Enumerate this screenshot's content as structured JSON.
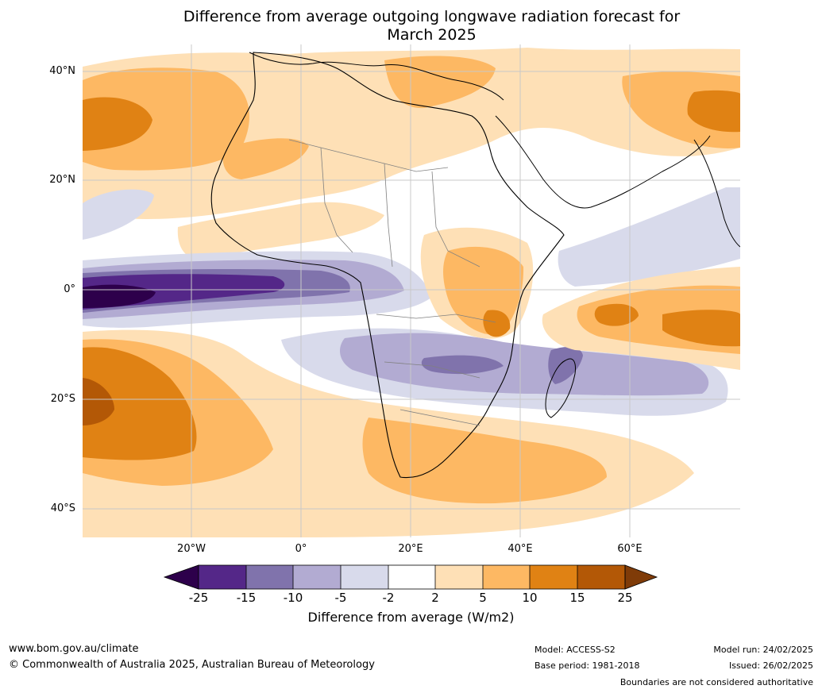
{
  "title_line1": "Difference from average outgoing longwave radiation forecast for",
  "title_line2": "March 2025",
  "lat_labels": [
    "40°N",
    "20°N",
    "0°",
    "20°S",
    "40°S"
  ],
  "lon_labels": [
    "20°W",
    "0°",
    "20°E",
    "40°E",
    "60°E"
  ],
  "colorbar": {
    "label": "Difference from average (W/m2)",
    "ticks": [
      "-25",
      "-15",
      "-10",
      "-5",
      "-2",
      "2",
      "5",
      "10",
      "15",
      "25"
    ],
    "colors": [
      "#2d004b",
      "#542788",
      "#8073ac",
      "#b2abd2",
      "#d8daeb",
      "#ffffff",
      "#fee0b6",
      "#fdb863",
      "#e08214",
      "#b35806",
      "#7f3b08"
    ]
  },
  "footer": {
    "website": "www.bom.gov.au/climate",
    "copyright": "© Commonwealth of Australia 2025, Australian Bureau of Meteorology",
    "model": "Model: ACCESS-S2",
    "base_period": "Base period: 1981-2018",
    "model_run": "Model run: 24/02/2025",
    "issued": "Issued: 26/02/2025",
    "disclaimer": "Boundaries are not considered authoritative"
  }
}
